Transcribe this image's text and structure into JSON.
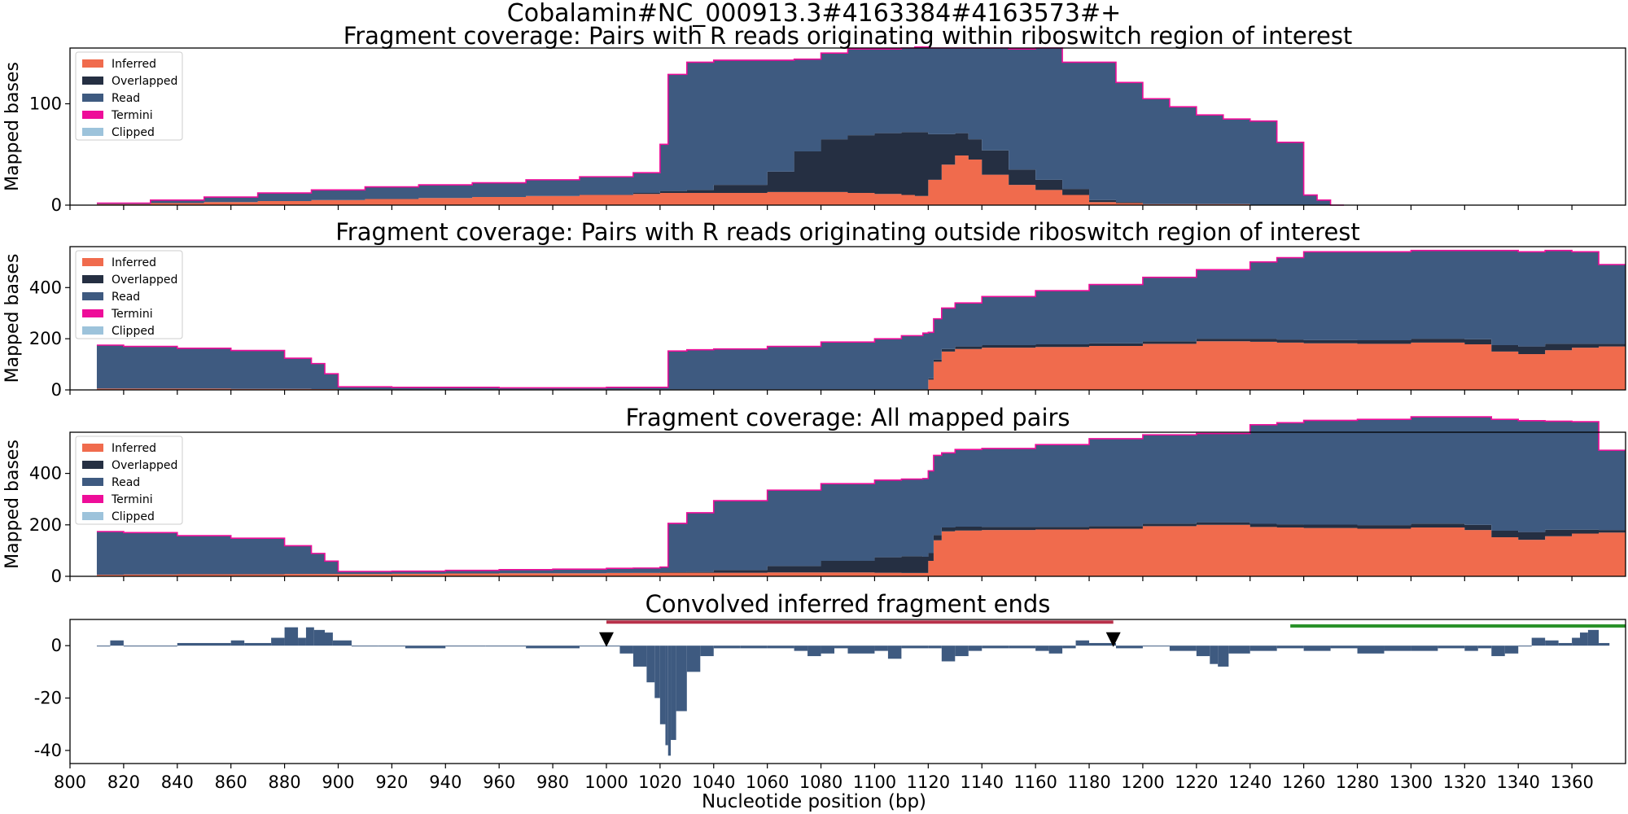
{
  "figure_title": "Cobalamin#NC_000913.3#4163384#4163573#+",
  "colors": {
    "inferred": "#f06b4d",
    "overlapped": "#252f42",
    "read": "#3e5a80",
    "termini": "#ee0d99",
    "clipped": "#9dc3db",
    "red_bar": "#b8314a",
    "green_bar": "#2a922a",
    "marker": "#000000"
  },
  "xaxis": {
    "label": "Nucleotide position (bp)",
    "range": [
      800,
      1380
    ],
    "ticks": [
      800,
      820,
      840,
      860,
      880,
      900,
      920,
      940,
      960,
      980,
      1000,
      1020,
      1040,
      1060,
      1080,
      1100,
      1120,
      1140,
      1160,
      1180,
      1200,
      1220,
      1240,
      1260,
      1280,
      1300,
      1320,
      1340,
      1360
    ]
  },
  "chart_data": [
    {
      "type": "area",
      "stacked": true,
      "title": "Fragment coverage: Pairs with R reads originating within riboswitch region of interest",
      "ylabel": "Mapped bases",
      "ylim": [
        0,
        155
      ],
      "yticks": [
        0,
        100
      ],
      "legend": {
        "placement": "top-left",
        "entries": [
          "Inferred",
          "Overlapped",
          "Read",
          "Termini",
          "Clipped"
        ]
      },
      "x": [
        810,
        830,
        850,
        870,
        890,
        910,
        930,
        950,
        970,
        990,
        1010,
        1020,
        1023,
        1030,
        1040,
        1060,
        1070,
        1080,
        1090,
        1100,
        1110,
        1115,
        1120,
        1125,
        1130,
        1135,
        1140,
        1150,
        1160,
        1170,
        1180,
        1190,
        1200,
        1210,
        1220,
        1230,
        1240,
        1250,
        1260,
        1265,
        1270
      ],
      "series": [
        {
          "name": "Inferred",
          "values": [
            1,
            2,
            3,
            4,
            5,
            6,
            7,
            8,
            9,
            10,
            11,
            12,
            12,
            12,
            12,
            13,
            13,
            13,
            12,
            11,
            10,
            9,
            25,
            40,
            49,
            45,
            30,
            20,
            15,
            10,
            3,
            2,
            1,
            1,
            1,
            1,
            0,
            0,
            0,
            0,
            0
          ]
        },
        {
          "name": "Overlapped",
          "values": [
            0,
            0,
            0,
            0,
            0,
            0,
            0,
            0,
            0,
            0,
            1,
            2,
            2,
            3,
            8,
            20,
            40,
            52,
            57,
            60,
            62,
            63,
            45,
            30,
            22,
            20,
            24,
            15,
            10,
            6,
            2,
            1,
            0,
            0,
            0,
            0,
            0,
            0,
            0,
            0,
            0
          ]
        },
        {
          "name": "Read",
          "values": [
            1,
            3,
            5,
            8,
            10,
            12,
            13,
            14,
            16,
            18,
            20,
            46,
            115,
            126,
            123,
            110,
            91,
            85,
            85,
            83,
            83,
            84,
            85,
            85,
            84,
            90,
            101,
            119,
            130,
            125,
            136,
            118,
            104,
            96,
            88,
            84,
            83,
            62,
            10,
            5,
            0
          ]
        },
        {
          "name": "Termini",
          "values": [
            0,
            0,
            0,
            0,
            0,
            0,
            0,
            0,
            0,
            0,
            0,
            0,
            0,
            0,
            0,
            0,
            0,
            0,
            0,
            0,
            0,
            0,
            0,
            0,
            0,
            0,
            0,
            0,
            0,
            0,
            0,
            0,
            0,
            0,
            0,
            0,
            0,
            0,
            0,
            0,
            0
          ]
        },
        {
          "name": "Clipped",
          "values": [
            0,
            0,
            0,
            0,
            0,
            0,
            0,
            0,
            0,
            0,
            0,
            0,
            0,
            0,
            0,
            0,
            0,
            0,
            0,
            0,
            0,
            0,
            0,
            0,
            0,
            0,
            0,
            0,
            0,
            0,
            0,
            0,
            0,
            0,
            0,
            0,
            0,
            0,
            0,
            0,
            0
          ]
        }
      ]
    },
    {
      "type": "area",
      "stacked": true,
      "title": "Fragment coverage: Pairs with R reads originating outside riboswitch region of interest",
      "ylabel": "Mapped bases",
      "ylim": [
        0,
        560
      ],
      "yticks": [
        0,
        200,
        400
      ],
      "legend": {
        "placement": "top-left",
        "entries": [
          "Inferred",
          "Overlapped",
          "Read",
          "Termini",
          "Clipped"
        ]
      },
      "x": [
        810,
        820,
        840,
        860,
        880,
        890,
        895,
        900,
        920,
        940,
        960,
        980,
        1000,
        1010,
        1020,
        1023,
        1030,
        1040,
        1060,
        1080,
        1100,
        1110,
        1118,
        1120,
        1122,
        1125,
        1130,
        1140,
        1160,
        1180,
        1200,
        1220,
        1240,
        1250,
        1260,
        1280,
        1300,
        1320,
        1330,
        1340,
        1350,
        1360,
        1370,
        1375
      ],
      "series": [
        {
          "name": "Inferred",
          "values": [
            5,
            5,
            5,
            4,
            4,
            3,
            3,
            2,
            2,
            2,
            2,
            2,
            2,
            2,
            2,
            2,
            2,
            2,
            2,
            2,
            2,
            2,
            2,
            40,
            110,
            150,
            160,
            165,
            168,
            172,
            180,
            190,
            188,
            185,
            182,
            180,
            185,
            178,
            150,
            140,
            155,
            165,
            170,
            170
          ]
        },
        {
          "name": "Overlapped",
          "values": [
            0,
            0,
            0,
            0,
            0,
            0,
            0,
            0,
            0,
            0,
            0,
            0,
            0,
            0,
            0,
            0,
            0,
            0,
            0,
            0,
            0,
            0,
            0,
            5,
            8,
            10,
            10,
            10,
            10,
            10,
            10,
            10,
            12,
            12,
            13,
            14,
            15,
            20,
            25,
            30,
            25,
            15,
            10,
            10
          ]
        },
        {
          "name": "Read",
          "values": [
            170,
            165,
            158,
            150,
            120,
            100,
            60,
            10,
            8,
            8,
            6,
            6,
            8,
            8,
            8,
            150,
            155,
            158,
            168,
            185,
            198,
            210,
            220,
            180,
            160,
            160,
            170,
            190,
            210,
            230,
            250,
            270,
            300,
            320,
            345,
            346,
            345,
            347,
            370,
            370,
            365,
            360,
            310,
            310
          ]
        },
        {
          "name": "Termini",
          "values": [
            0,
            0,
            0,
            0,
            0,
            0,
            0,
            0,
            0,
            0,
            0,
            0,
            0,
            0,
            0,
            0,
            0,
            0,
            0,
            0,
            0,
            0,
            0,
            0,
            0,
            0,
            0,
            0,
            0,
            0,
            0,
            0,
            0,
            0,
            0,
            0,
            0,
            0,
            0,
            0,
            0,
            0,
            0,
            0
          ]
        },
        {
          "name": "Clipped",
          "values": [
            0,
            0,
            0,
            0,
            0,
            0,
            0,
            0,
            0,
            0,
            0,
            0,
            0,
            0,
            0,
            0,
            0,
            0,
            0,
            0,
            0,
            0,
            0,
            0,
            0,
            0,
            0,
            0,
            0,
            0,
            0,
            0,
            0,
            0,
            0,
            0,
            0,
            0,
            0,
            0,
            0,
            0,
            0,
            0
          ]
        }
      ]
    },
    {
      "type": "area",
      "stacked": true,
      "title": "Fragment coverage: All mapped pairs",
      "ylabel": "Mapped bases",
      "ylim": [
        0,
        560
      ],
      "yticks": [
        0,
        200,
        400
      ],
      "legend": {
        "placement": "top-left",
        "entries": [
          "Inferred",
          "Overlapped",
          "Read",
          "Termini",
          "Clipped"
        ]
      },
      "x": [
        810,
        820,
        840,
        860,
        880,
        890,
        895,
        900,
        920,
        940,
        960,
        980,
        1000,
        1010,
        1020,
        1023,
        1030,
        1040,
        1060,
        1080,
        1100,
        1110,
        1118,
        1120,
        1122,
        1125,
        1130,
        1140,
        1160,
        1180,
        1200,
        1220,
        1240,
        1250,
        1260,
        1280,
        1300,
        1320,
        1330,
        1340,
        1350,
        1360,
        1370,
        1375
      ],
      "series": [
        {
          "name": "Inferred",
          "values": [
            6,
            7,
            8,
            8,
            9,
            9,
            9,
            9,
            10,
            11,
            12,
            12,
            13,
            13,
            14,
            14,
            14,
            14,
            15,
            15,
            14,
            13,
            13,
            60,
            140,
            175,
            178,
            180,
            182,
            185,
            195,
            200,
            192,
            190,
            188,
            185,
            190,
            180,
            152,
            142,
            156,
            166,
            170,
            170
          ]
        },
        {
          "name": "Overlapped",
          "values": [
            0,
            0,
            0,
            0,
            0,
            0,
            0,
            0,
            0,
            0,
            0,
            0,
            0,
            1,
            2,
            2,
            3,
            10,
            25,
            45,
            60,
            65,
            63,
            30,
            20,
            15,
            15,
            12,
            10,
            10,
            10,
            10,
            12,
            12,
            13,
            14,
            15,
            20,
            25,
            30,
            25,
            15,
            10,
            10
          ]
        },
        {
          "name": "Read",
          "values": [
            168,
            163,
            150,
            140,
            110,
            80,
            50,
            10,
            10,
            12,
            14,
            16,
            18,
            18,
            20,
            190,
            230,
            270,
            295,
            300,
            300,
            300,
            304,
            320,
            310,
            290,
            300,
            305,
            320,
            340,
            345,
            345,
            385,
            395,
            405,
            411,
            415,
            420,
            433,
            433,
            422,
            420,
            310,
            310
          ]
        },
        {
          "name": "Termini",
          "values": [
            0,
            0,
            0,
            0,
            0,
            0,
            0,
            0,
            0,
            0,
            0,
            0,
            0,
            0,
            0,
            0,
            0,
            0,
            0,
            0,
            0,
            0,
            0,
            0,
            0,
            0,
            0,
            0,
            0,
            0,
            0,
            0,
            0,
            0,
            0,
            0,
            0,
            0,
            0,
            0,
            0,
            0,
            0,
            0
          ]
        },
        {
          "name": "Clipped",
          "values": [
            0,
            0,
            0,
            0,
            0,
            0,
            0,
            0,
            0,
            0,
            0,
            0,
            0,
            0,
            0,
            0,
            0,
            0,
            0,
            0,
            0,
            0,
            0,
            0,
            0,
            0,
            0,
            0,
            0,
            0,
            0,
            0,
            0,
            0,
            0,
            0,
            0,
            0,
            0,
            0,
            0,
            0,
            0,
            0
          ]
        }
      ]
    },
    {
      "type": "bar",
      "title": "Convolved inferred fragment ends",
      "ylabel": "",
      "ylim": [
        -45,
        10
      ],
      "yticks": [
        -40,
        -20,
        0
      ],
      "x": [
        810,
        815,
        820,
        840,
        860,
        865,
        875,
        880,
        885,
        888,
        891,
        895,
        898,
        905,
        915,
        925,
        940,
        955,
        970,
        990,
        1005,
        1010,
        1015,
        1018,
        1020,
        1022,
        1023,
        1024,
        1026,
        1030,
        1035,
        1040,
        1050,
        1060,
        1070,
        1075,
        1080,
        1085,
        1090,
        1100,
        1105,
        1110,
        1120,
        1125,
        1130,
        1135,
        1140,
        1150,
        1160,
        1165,
        1170,
        1175,
        1180,
        1185,
        1190,
        1200,
        1210,
        1220,
        1225,
        1228,
        1232,
        1240,
        1250,
        1260,
        1270,
        1280,
        1290,
        1300,
        1310,
        1320,
        1325,
        1330,
        1335,
        1340,
        1345,
        1350,
        1355,
        1360,
        1363,
        1366,
        1370
      ],
      "values": [
        0,
        2,
        0,
        1,
        2,
        1,
        3,
        7,
        3,
        7,
        6,
        5,
        2,
        0,
        0,
        -1,
        0,
        0,
        -1,
        0,
        -3,
        -8,
        -14,
        -20,
        -30,
        -38,
        -42,
        -36,
        -25,
        -10,
        -4,
        -1,
        -1,
        -1,
        -2,
        -4,
        -3,
        -1,
        -3,
        -2,
        -5,
        -1,
        -1,
        -6,
        -4,
        -2,
        -1,
        -1,
        -2,
        -3,
        -1,
        2,
        1,
        1,
        -1,
        0,
        -2,
        -4,
        -7,
        -8,
        -3,
        -2,
        -1,
        -2,
        -1,
        -3,
        -2,
        -2,
        -1,
        -2,
        -1,
        -4,
        -3,
        0,
        3,
        2,
        1,
        3,
        5,
        6,
        1
      ],
      "annotations": [
        {
          "type": "hline",
          "color_key": "red_bar",
          "x_start": 1000,
          "x_end": 1189,
          "y": 9
        },
        {
          "type": "hline",
          "color_key": "green_bar",
          "x_start": 1255,
          "x_end": 1380,
          "y": 7.5
        },
        {
          "type": "marker",
          "shape": "down-triangle",
          "x": 1000,
          "y": 2
        },
        {
          "type": "marker",
          "shape": "down-triangle",
          "x": 1189,
          "y": 2
        }
      ]
    }
  ]
}
